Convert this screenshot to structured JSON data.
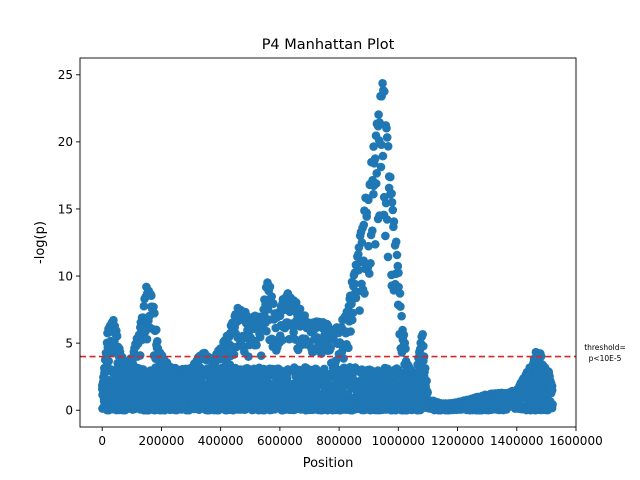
{
  "chart_data": {
    "type": "scatter",
    "title": "P4 Manhattan Plot",
    "xlabel": "Position",
    "ylabel": "-log(p)",
    "xlim": [
      -75000,
      1600000
    ],
    "ylim": [
      -1.25,
      26.25
    ],
    "x_ticks": [
      0,
      200000,
      400000,
      600000,
      800000,
      1000000,
      1200000,
      1400000,
      1600000
    ],
    "x_tick_labels": [
      "0",
      "200000",
      "400000",
      "600000",
      "800000",
      "1000000",
      "1200000",
      "1400000",
      "1600000"
    ],
    "y_ticks": [
      0,
      5,
      10,
      15,
      20,
      25
    ],
    "y_tick_labels": [
      "0",
      "5",
      "10",
      "15",
      "20",
      "25"
    ],
    "grid": false,
    "marker_color": "#1f77b4",
    "threshold": {
      "value": 4,
      "color": "#d62728",
      "label_line1": "threshold=",
      "label_line2": "p<10E-5"
    },
    "envelope": [
      [
        0,
        2.0
      ],
      [
        20000,
        6.2
      ],
      [
        40000,
        7.0
      ],
      [
        60000,
        4.5
      ],
      [
        80000,
        3.5
      ],
      [
        100000,
        4.0
      ],
      [
        130000,
        6.5
      ],
      [
        150000,
        9.3
      ],
      [
        170000,
        8.5
      ],
      [
        190000,
        4.5
      ],
      [
        220000,
        3.5
      ],
      [
        260000,
        3.0
      ],
      [
        300000,
        3.2
      ],
      [
        340000,
        4.5
      ],
      [
        370000,
        3.8
      ],
      [
        420000,
        5.5
      ],
      [
        460000,
        7.8
      ],
      [
        500000,
        7.0
      ],
      [
        540000,
        7.3
      ],
      [
        560000,
        10.1
      ],
      [
        590000,
        7.0
      ],
      [
        620000,
        9.0
      ],
      [
        660000,
        8.0
      ],
      [
        700000,
        6.5
      ],
      [
        740000,
        7.0
      ],
      [
        780000,
        6.0
      ],
      [
        820000,
        7.0
      ],
      [
        850000,
        10.5
      ],
      [
        880000,
        14.5
      ],
      [
        900000,
        17.5
      ],
      [
        930000,
        22.0
      ],
      [
        950000,
        25.0
      ],
      [
        965000,
        21.0
      ],
      [
        980000,
        16.0
      ],
      [
        1000000,
        11.0
      ],
      [
        1010000,
        7.5
      ],
      [
        1030000,
        3.5
      ],
      [
        1060000,
        2.5
      ],
      [
        1080000,
        6.3
      ],
      [
        1100000,
        0.8
      ],
      [
        1150000,
        0.5
      ],
      [
        1200000,
        0.6
      ],
      [
        1250000,
        0.9
      ],
      [
        1300000,
        1.2
      ],
      [
        1350000,
        1.3
      ],
      [
        1400000,
        1.5
      ],
      [
        1450000,
        3.5
      ],
      [
        1470000,
        4.8
      ],
      [
        1490000,
        3.5
      ],
      [
        1510000,
        2.8
      ],
      [
        1520000,
        2.0
      ]
    ]
  }
}
